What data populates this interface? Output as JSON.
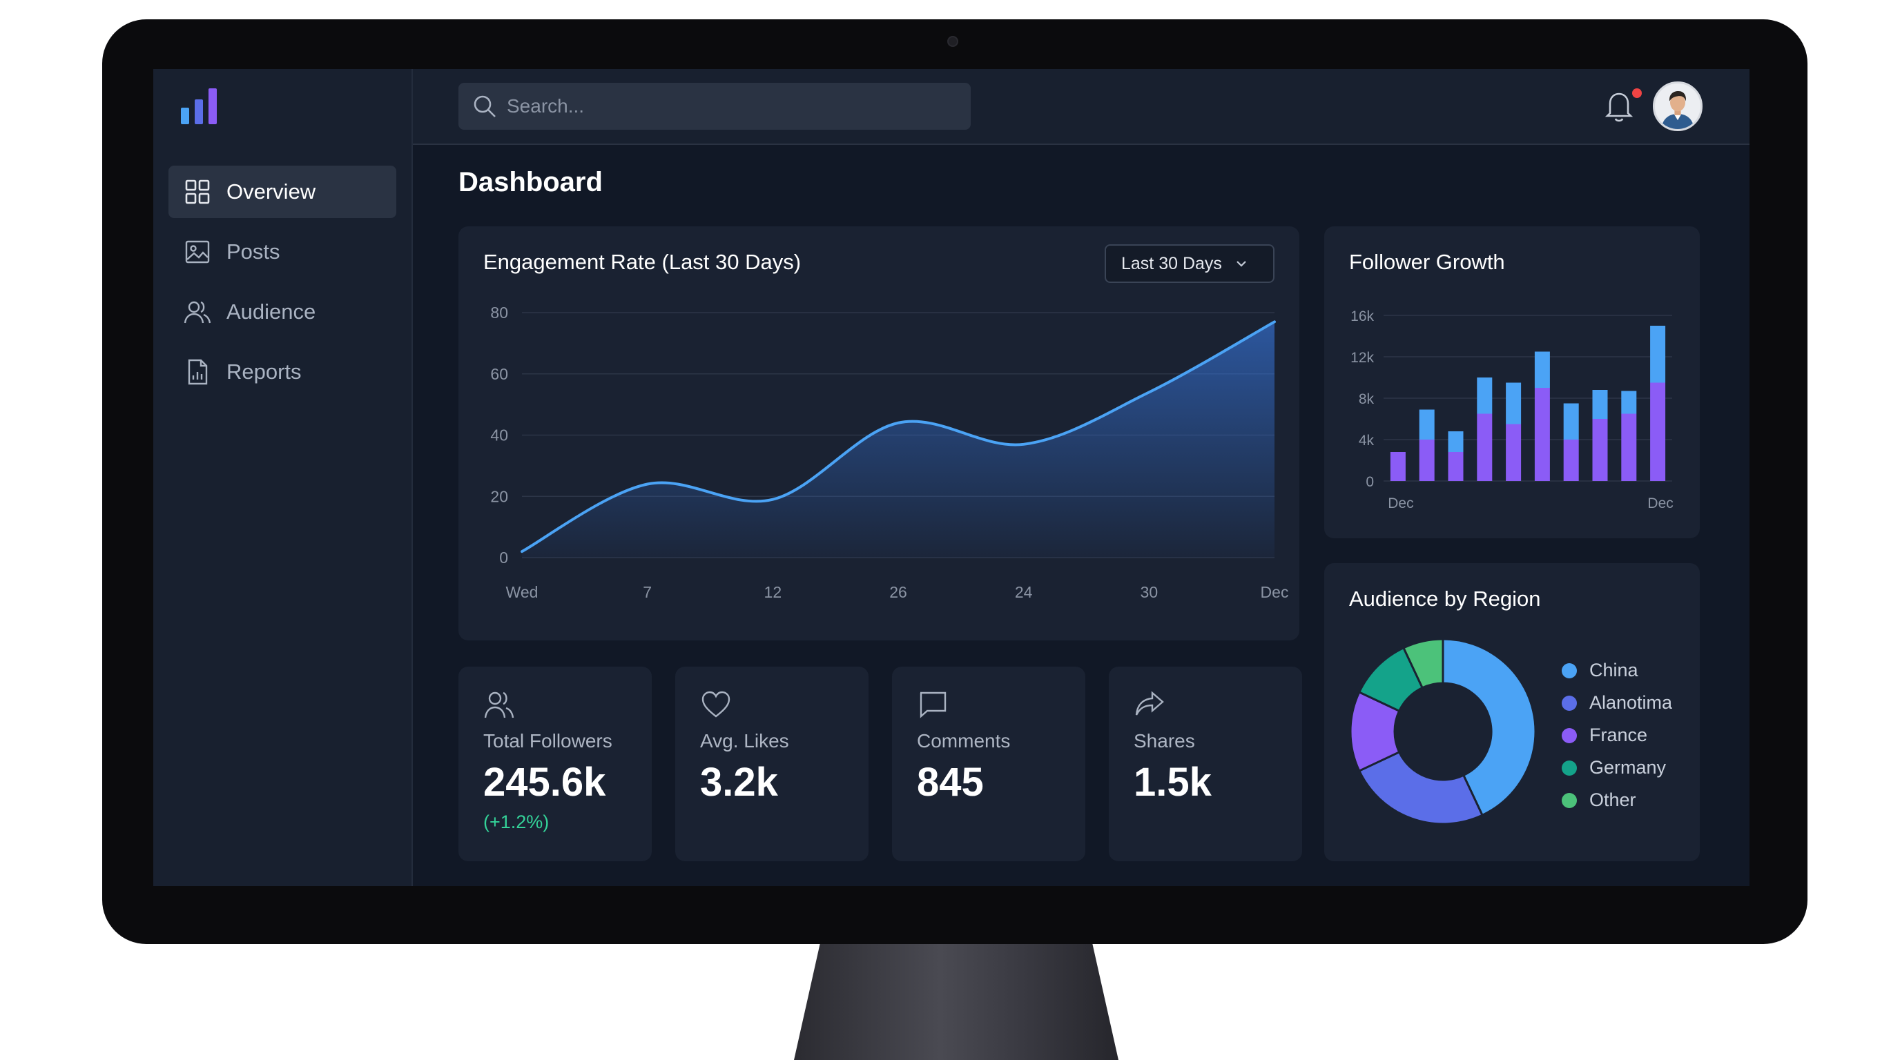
{
  "search": {
    "placeholder": "Search..."
  },
  "sidebar": {
    "items": [
      {
        "label": "Overview",
        "icon": "grid-icon",
        "active": true
      },
      {
        "label": "Posts",
        "icon": "image-icon",
        "active": false
      },
      {
        "label": "Audience",
        "icon": "users-icon",
        "active": false
      },
      {
        "label": "Reports",
        "icon": "report-icon",
        "active": false
      }
    ]
  },
  "header": {
    "title": "Dashboard"
  },
  "engagement": {
    "title": "Engagement Rate (Last 30 Days)",
    "range_label": "Last 30 Days"
  },
  "followers": {
    "title": "Follower Growth"
  },
  "region": {
    "title": "Audience by Region",
    "legend": [
      {
        "label": "China",
        "color": "#4ba3f5"
      },
      {
        "label": "Alanotima",
        "color": "#5b6ee8"
      },
      {
        "label": "France",
        "color": "#8b5cf6"
      },
      {
        "label": "Germany",
        "color": "#14a38a"
      },
      {
        "label": "Other",
        "color": "#4cc27a"
      }
    ]
  },
  "stats": [
    {
      "label": "Total Followers",
      "value": "245.6k",
      "change": "(+1.2%)",
      "icon": "users-icon"
    },
    {
      "label": "Avg. Likes",
      "value": "3.2k",
      "change": "",
      "icon": "heart-icon"
    },
    {
      "label": "Comments",
      "value": "845",
      "change": "",
      "icon": "comment-icon"
    },
    {
      "label": "Shares",
      "value": "1.5k",
      "change": "",
      "icon": "share-icon"
    }
  ],
  "colors": {
    "accent": "#4ba3f5",
    "purple": "#8b5cf6",
    "positive": "#34d399"
  },
  "chart_data": [
    {
      "type": "area",
      "title": "Engagement Rate (Last 30 Days)",
      "x": [
        "Wed",
        "7",
        "12",
        "26",
        "24",
        "30",
        "Dec"
      ],
      "series": [
        {
          "values": [
            2,
            24,
            19,
            44,
            37,
            54,
            77
          ]
        }
      ],
      "ylim": [
        0,
        80
      ],
      "yticks": [
        0,
        20,
        40,
        60,
        80
      ],
      "grid": true
    },
    {
      "type": "bar",
      "title": "Follower Growth",
      "stacked": true,
      "xticks": [
        "Dec",
        "Dec"
      ],
      "ylim": [
        0,
        16000
      ],
      "yticks": [
        "0",
        "4k",
        "8k",
        "12k",
        "16k"
      ],
      "series": [
        {
          "color": "#8b5cf6",
          "values": [
            2800,
            4000,
            2800,
            6500,
            5500,
            9000,
            4000,
            6000,
            6500,
            9500
          ]
        },
        {
          "color": "#4ba3f5",
          "values": [
            0,
            2900,
            2000,
            3500,
            4000,
            3500,
            3500,
            2800,
            2200,
            5500
          ]
        }
      ],
      "grid": true
    },
    {
      "type": "pie",
      "title": "Audience by Region",
      "categories": [
        "China",
        "Alanotima",
        "France",
        "Germany",
        "Other"
      ],
      "values": [
        43,
        25,
        14,
        11,
        7
      ]
    }
  ]
}
